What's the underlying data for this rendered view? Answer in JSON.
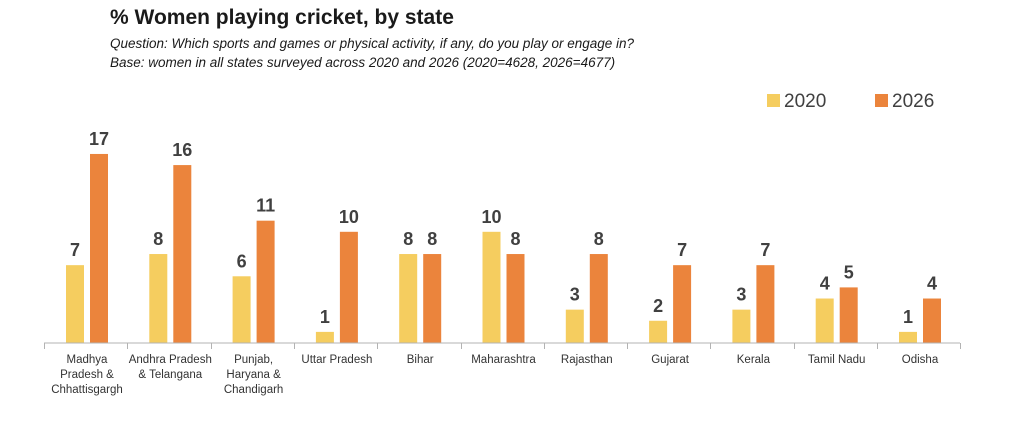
{
  "chart_data": {
    "type": "bar",
    "title": "% Women playing cricket, by state",
    "subtitle": "Question: Which sports and games or physical activity, if any, do you play or engage in?",
    "subtitle2": "Base: women in all states surveyed across 2020 and 2026 (2020=4628, 2026=4677)",
    "xlabel": "",
    "ylabel": "",
    "ylim": [
      0,
      18
    ],
    "legend": "top-right",
    "categories": [
      [
        "Madhya",
        "Pradesh &",
        "Chhattisgargh"
      ],
      [
        "Andhra Pradesh",
        "& Telangana"
      ],
      [
        "Punjab,",
        "Haryana &",
        "Chandigarh"
      ],
      [
        "Uttar Pradesh"
      ],
      [
        "Bihar"
      ],
      [
        "Maharashtra"
      ],
      [
        "Rajasthan"
      ],
      [
        "Gujarat"
      ],
      [
        "Kerala"
      ],
      [
        "Tamil Nadu"
      ],
      [
        "Odisha"
      ]
    ],
    "series": [
      {
        "name": "2020",
        "color": "#F5CD5F",
        "values": [
          7,
          8,
          6,
          1,
          8,
          10,
          3,
          2,
          3,
          4,
          1
        ]
      },
      {
        "name": "2026",
        "color": "#EB843C",
        "values": [
          17,
          16,
          11,
          10,
          8,
          8,
          8,
          7,
          7,
          5,
          4
        ]
      }
    ]
  }
}
